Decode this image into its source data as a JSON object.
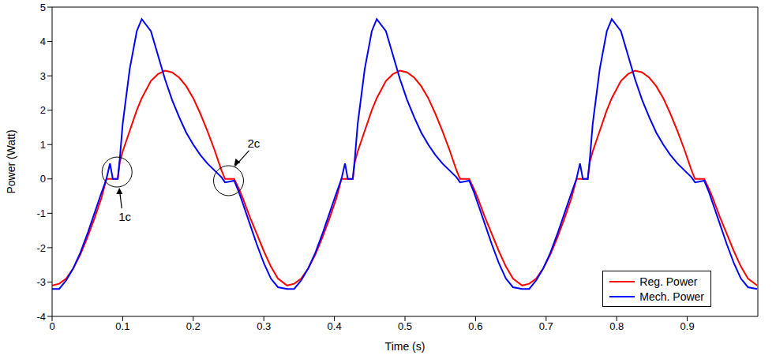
{
  "chart_data": {
    "type": "line",
    "xlabel": "Time (s)",
    "ylabel": "Power (Watt)",
    "xlim": [
      0,
      1
    ],
    "xticks": [
      0,
      0.1,
      0.2,
      0.3,
      0.4,
      0.5,
      0.6,
      0.7,
      0.8,
      0.9
    ],
    "ylim": [
      -4,
      5
    ],
    "yticks": [
      -4,
      -3,
      -2,
      -1,
      0,
      1,
      2,
      3,
      4,
      5
    ],
    "grid": false,
    "legend": "lower right",
    "x": [
      0,
      0.01,
      0.02,
      0.03,
      0.04,
      0.05,
      0.06,
      0.07,
      0.077,
      0.082,
      0.086,
      0.093,
      0.096,
      0.1,
      0.11,
      0.12,
      0.127,
      0.14,
      0.15,
      0.16,
      0.17,
      0.18,
      0.19,
      0.2,
      0.21,
      0.22,
      0.23,
      0.24,
      0.245,
      0.258,
      0.265,
      0.27,
      0.28,
      0.29,
      0.3,
      0.31,
      0.32,
      0.333,
      0.343,
      0.353,
      0.363,
      0.373,
      0.383,
      0.393,
      0.403,
      0.41,
      0.415,
      0.419,
      0.426,
      0.429,
      0.433,
      0.443,
      0.453,
      0.46,
      0.473,
      0.483,
      0.493,
      0.503,
      0.513,
      0.523,
      0.533,
      0.543,
      0.553,
      0.563,
      0.573,
      0.578,
      0.591,
      0.598,
      0.603,
      0.613,
      0.623,
      0.633,
      0.643,
      0.653,
      0.666,
      0.676,
      0.686,
      0.696,
      0.706,
      0.716,
      0.726,
      0.736,
      0.743,
      0.748,
      0.752,
      0.759,
      0.762,
      0.766,
      0.776,
      0.786,
      0.793,
      0.806,
      0.816,
      0.826,
      0.836,
      0.846,
      0.856,
      0.866,
      0.876,
      0.886,
      0.896,
      0.906,
      0.911,
      0.924,
      0.931,
      0.936,
      0.946,
      0.956,
      0.966,
      0.976,
      0.986,
      0.999
    ],
    "series": [
      {
        "name": "Reg. Power",
        "color": "#ff0000",
        "marker": "none",
        "line_style": "solid",
        "values": [
          -3.1,
          -3.05,
          -2.9,
          -2.6,
          -2.2,
          -1.7,
          -1.15,
          -0.55,
          0,
          0,
          0,
          0,
          0.5,
          0.8,
          1.4,
          2.0,
          2.35,
          2.85,
          3.05,
          3.15,
          3.1,
          2.95,
          2.7,
          2.35,
          1.9,
          1.4,
          0.85,
          0.25,
          0,
          0,
          -0.3,
          -0.55,
          -1.1,
          -1.6,
          -2.1,
          -2.55,
          -2.9,
          -3.1,
          -3.05,
          -2.9,
          -2.6,
          -2.2,
          -1.7,
          -1.15,
          -0.55,
          0,
          0,
          0,
          0,
          0.5,
          0.8,
          1.4,
          2.0,
          2.35,
          2.85,
          3.05,
          3.15,
          3.1,
          2.95,
          2.7,
          2.35,
          1.9,
          1.4,
          0.85,
          0.25,
          0,
          0,
          -0.3,
          -0.55,
          -1.1,
          -1.6,
          -2.1,
          -2.55,
          -2.9,
          -3.1,
          -3.05,
          -2.9,
          -2.6,
          -2.2,
          -1.7,
          -1.15,
          -0.55,
          0,
          0,
          0,
          0,
          0.5,
          0.8,
          1.4,
          2.0,
          2.35,
          2.85,
          3.05,
          3.15,
          3.1,
          2.95,
          2.7,
          2.35,
          1.9,
          1.4,
          0.85,
          0.25,
          0,
          0,
          -0.3,
          -0.55,
          -1.1,
          -1.6,
          -2.1,
          -2.55,
          -2.9,
          -3.1
        ]
      },
      {
        "name": "Mech. Power",
        "color": "#0000ff",
        "marker": "none",
        "line_style": "solid",
        "values": [
          -3.2,
          -3.2,
          -2.95,
          -2.6,
          -2.15,
          -1.6,
          -1.0,
          -0.4,
          0,
          0.45,
          0,
          0,
          0.6,
          1.6,
          3.2,
          4.3,
          4.65,
          4.3,
          3.6,
          2.9,
          2.3,
          1.8,
          1.35,
          1.0,
          0.7,
          0.45,
          0.25,
          0.05,
          -0.1,
          -0.05,
          -0.4,
          -0.7,
          -1.3,
          -1.9,
          -2.45,
          -2.9,
          -3.15,
          -3.2,
          -3.2,
          -2.95,
          -2.6,
          -2.15,
          -1.6,
          -1.0,
          -0.4,
          0,
          0.45,
          0,
          0,
          0.6,
          1.6,
          3.2,
          4.3,
          4.65,
          4.3,
          3.6,
          2.9,
          2.3,
          1.8,
          1.35,
          1.0,
          0.7,
          0.45,
          0.25,
          0.05,
          -0.1,
          -0.05,
          -0.4,
          -0.7,
          -1.3,
          -1.9,
          -2.45,
          -2.9,
          -3.15,
          -3.2,
          -3.2,
          -2.95,
          -2.6,
          -2.15,
          -1.6,
          -1.0,
          -0.4,
          0,
          0.45,
          0,
          0,
          0.6,
          1.6,
          3.2,
          4.3,
          4.65,
          4.3,
          3.6,
          2.9,
          2.3,
          1.8,
          1.35,
          1.0,
          0.7,
          0.45,
          0.25,
          0.05,
          -0.1,
          -0.05,
          -0.4,
          -0.7,
          -1.3,
          -1.9,
          -2.45,
          -2.9,
          -3.15,
          -3.2
        ]
      }
    ],
    "annotations": [
      {
        "text": "1c",
        "x": 0.092,
        "y": 0.2
      },
      {
        "text": "2c",
        "x": 0.25,
        "y": -0.05
      }
    ]
  }
}
